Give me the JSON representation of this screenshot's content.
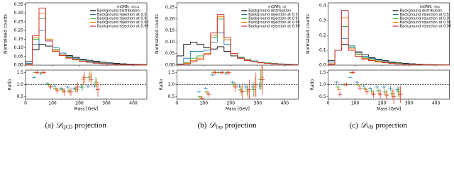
{
  "chart_data": [
    {
      "type": "histogram",
      "caption": {
        "label": "(a)",
        "symbol": "𝒟",
        "sub": "QCD",
        "rest": "projection"
      },
      "legend_title": {
        "prefix": "mDNN:",
        "symbol": "𝒟",
        "sub": "QCD"
      },
      "ylabel": "Normalised counts",
      "bins": [
        0,
        25,
        50,
        75,
        100,
        125,
        150,
        175,
        200,
        225,
        250,
        275,
        300,
        325,
        350,
        375,
        400,
        425,
        450
      ],
      "xlim": [
        0,
        450
      ],
      "xticks": [
        0,
        100,
        200,
        300,
        400
      ],
      "ylim": [
        0,
        0.36
      ],
      "yticks": [
        {
          "value": 0,
          "label": "0.00"
        },
        0.05,
        {
          "value": 0.1,
          "label": "0.10"
        },
        0.15,
        {
          "value": 0.2,
          "label": "0.20"
        },
        0.25,
        {
          "value": 0.3,
          "label": "0.30"
        },
        0.35
      ],
      "series": [
        {
          "name": "Background distribution",
          "color": "#000000",
          "values": [
            0.02,
            0.09,
            0.12,
            0.11,
            0.09,
            0.07,
            0.055,
            0.045,
            0.035,
            0.028,
            0.022,
            0.017,
            0.013,
            0.01,
            0.008,
            0.006,
            0.005,
            0.004
          ]
        },
        {
          "name": "Background rejection at 0.5",
          "color": "#1f77b4",
          "values": [
            0.01,
            0.12,
            0.2,
            0.14,
            0.1,
            0.07,
            0.05,
            0.04,
            0.03,
            0.022,
            0.016,
            0.012,
            0.009,
            0.007,
            0.005,
            0.004,
            0.003,
            0.002
          ]
        },
        {
          "name": "Background rejection at 0.9",
          "color": "#2ca02c",
          "values": [
            0.005,
            0.15,
            0.27,
            0.15,
            0.09,
            0.06,
            0.045,
            0.035,
            0.025,
            0.018,
            0.013,
            0.01,
            0.007,
            0.005,
            0.004,
            0.003,
            0.002,
            0.001
          ]
        },
        {
          "name": "Background rejection at 0.95",
          "color": "#ff7f0e",
          "values": [
            0.004,
            0.16,
            0.3,
            0.15,
            0.085,
            0.058,
            0.042,
            0.032,
            0.023,
            0.017,
            0.012,
            0.009,
            0.006,
            0.005,
            0.003,
            0.002,
            0.002,
            0.001
          ]
        },
        {
          "name": "Background rejection at 0.99",
          "color": "#d62728",
          "values": [
            0.003,
            0.17,
            0.33,
            0.14,
            0.08,
            0.055,
            0.04,
            0.03,
            0.022,
            0.016,
            0.011,
            0.008,
            0.006,
            0.004,
            0.003,
            0.002,
            0.001,
            0.001
          ]
        }
      ],
      "ratio": {
        "type": "errorbar",
        "ylabel": "Ratio",
        "xlabel": "Mass [GeV]",
        "ylim": [
          0.4,
          1.6
        ],
        "yticks": [
          0.5,
          {
            "value": 1,
            "label": "1.0"
          },
          1.5
        ],
        "hline": 1,
        "x": [
          37.5,
          62.5,
          87.5,
          112.5,
          137.5,
          162.5,
          187.5,
          212.5,
          237.5,
          262.5
        ],
        "series": [
          {
            "color": "#1f77b4",
            "values": [
              1.3,
              1.45,
              1.05,
              0.95,
              0.85,
              0.9,
              0.85,
              0.9,
              0.95,
              0.95
            ],
            "errors": [
              0.05,
              0.05,
              0.05,
              0.05,
              0.05,
              0.06,
              0.06,
              0.07,
              0.08,
              0.1
            ]
          },
          {
            "color": "#2ca02c",
            "values": [
              1.5,
              1.5,
              1.0,
              0.85,
              0.8,
              0.75,
              0.8,
              0.9,
              1.3,
              1.1
            ],
            "errors": [
              0.05,
              0.05,
              0.06,
              0.07,
              0.08,
              0.1,
              0.12,
              0.15,
              0.2,
              0.2
            ]
          },
          {
            "color": "#ff7f0e",
            "values": [
              1.5,
              1.5,
              0.95,
              0.8,
              0.75,
              0.7,
              0.8,
              1.2,
              1.35,
              1.0
            ],
            "errors": [
              0.06,
              0.06,
              0.07,
              0.08,
              0.1,
              0.12,
              0.15,
              0.2,
              0.25,
              0.25
            ]
          },
          {
            "color": "#d62728",
            "values": [
              1.5,
              1.5,
              0.9,
              0.75,
              0.7,
              0.7,
              0.9,
              1.3,
              1.2,
              0.8
            ],
            "errors": [
              0.08,
              0.08,
              0.1,
              0.12,
              0.15,
              0.18,
              0.2,
              0.25,
              0.3,
              0.3
            ]
          }
        ]
      }
    },
    {
      "type": "histogram",
      "caption": {
        "label": "(b)",
        "symbol": "𝒟",
        "sub": "Top",
        "rest": "projection"
      },
      "legend_title": {
        "prefix": "mDNN:",
        "symbol": "𝒟",
        "sub": "T"
      },
      "ylabel": "Normalised counts",
      "bins": [
        0,
        25,
        50,
        75,
        100,
        125,
        150,
        175,
        200,
        225,
        250,
        275,
        300,
        325,
        350,
        375,
        400,
        425,
        450
      ],
      "xlim": [
        0,
        450
      ],
      "xticks": [
        0,
        100,
        200,
        300,
        400
      ],
      "ylim": [
        0,
        0.27
      ],
      "yticks": [
        {
          "value": 0,
          "label": "0.00"
        },
        0.05,
        {
          "value": 0.1,
          "label": "0.10"
        },
        0.15,
        {
          "value": 0.2,
          "label": "0.20"
        },
        0.25
      ],
      "series": [
        {
          "name": "Background distribution",
          "color": "#000000",
          "values": [
            0.04,
            0.09,
            0.1,
            0.09,
            0.075,
            0.07,
            0.08,
            0.06,
            0.04,
            0.03,
            0.022,
            0.016,
            0.012,
            0.009,
            0.007,
            0.005,
            0.004,
            0.003
          ]
        },
        {
          "name": "Background rejection at 0.5",
          "color": "#1f77b4",
          "values": [
            0.005,
            0.03,
            0.06,
            0.06,
            0.065,
            0.1,
            0.14,
            0.09,
            0.05,
            0.035,
            0.025,
            0.018,
            0.013,
            0.01,
            0.007,
            0.005,
            0.004,
            0.003
          ]
        },
        {
          "name": "Background rejection at 0.9",
          "color": "#2ca02c",
          "values": [
            0.002,
            0.01,
            0.03,
            0.04,
            0.05,
            0.12,
            0.2,
            0.11,
            0.05,
            0.033,
            0.023,
            0.016,
            0.012,
            0.009,
            0.006,
            0.005,
            0.003,
            0.002
          ]
        },
        {
          "name": "Background rejection at 0.95",
          "color": "#ff7f0e",
          "values": [
            0.001,
            0.008,
            0.02,
            0.03,
            0.05,
            0.13,
            0.21,
            0.11,
            0.05,
            0.03,
            0.022,
            0.016,
            0.011,
            0.008,
            0.006,
            0.004,
            0.003,
            0.002
          ]
        },
        {
          "name": "Background rejection at 0.99",
          "color": "#d62728",
          "values": [
            0.001,
            0.005,
            0.015,
            0.025,
            0.045,
            0.14,
            0.22,
            0.12,
            0.05,
            0.03,
            0.02,
            0.015,
            0.01,
            0.007,
            0.005,
            0.004,
            0.003,
            0.002
          ]
        }
      ],
      "ratio": {
        "type": "errorbar",
        "ylabel": "Ratio",
        "xlabel": "Mass [GeV]",
        "ylim": [
          0.4,
          1.6
        ],
        "yticks": [
          0.5,
          {
            "value": 1,
            "label": "1.0"
          },
          1.5
        ],
        "hline": 1,
        "x": [
          87.5,
          112.5,
          137.5,
          162.5,
          187.5,
          212.5,
          237.5,
          262.5,
          287.5,
          312.5
        ],
        "series": [
          {
            "color": "#1f77b4",
            "values": [
              0.7,
              0.85,
              1.4,
              1.5,
              1.45,
              1.1,
              0.95,
              0.9,
              0.9,
              0.95
            ],
            "errors": [
              0.04,
              0.05,
              0.05,
              0.05,
              0.05,
              0.06,
              0.08,
              0.1,
              0.12,
              0.15
            ]
          },
          {
            "color": "#2ca02c",
            "values": [
              0.5,
              0.7,
              1.5,
              1.5,
              1.5,
              1.0,
              0.8,
              0.75,
              0.8,
              1.2
            ],
            "errors": [
              0.05,
              0.06,
              0.06,
              0.05,
              0.06,
              0.1,
              0.15,
              0.2,
              0.3,
              0.4
            ]
          },
          {
            "color": "#ff7f0e",
            "values": [
              0.45,
              0.65,
              1.5,
              1.5,
              1.5,
              0.95,
              0.75,
              0.7,
              0.9,
              1.3
            ],
            "errors": [
              0.06,
              0.07,
              0.07,
              0.06,
              0.07,
              0.12,
              0.2,
              0.3,
              0.4,
              0.5
            ]
          },
          {
            "color": "#d62728",
            "values": [
              0.45,
              0.6,
              1.5,
              1.5,
              1.5,
              0.9,
              0.7,
              0.8,
              1.0,
              1.2
            ],
            "errors": [
              0.08,
              0.1,
              0.1,
              0.08,
              0.1,
              0.2,
              0.3,
              0.4,
              0.5,
              0.6
            ]
          }
        ]
      }
    },
    {
      "type": "histogram",
      "caption": {
        "label": "(c)",
        "symbol": "𝒟",
        "sub": "VB",
        "rest": "projection"
      },
      "legend_title": {
        "prefix": "mDNN:",
        "symbol": "𝒟",
        "sub": "VB"
      },
      "ylabel": "Normalised counts",
      "bins": [
        0,
        25,
        50,
        75,
        100,
        125,
        150,
        175,
        200,
        225,
        250,
        275,
        300,
        325,
        350,
        375,
        400,
        425,
        450
      ],
      "xlim": [
        0,
        450
      ],
      "xticks": [
        0,
        100,
        200,
        300,
        400
      ],
      "ylim": [
        0,
        0.42
      ],
      "yticks": [
        {
          "value": 0,
          "label": "0.0"
        },
        0.1,
        0.2,
        0.3,
        0.4
      ],
      "series": [
        {
          "name": "Background distribution",
          "color": "#000000",
          "values": [
            0.03,
            0.1,
            0.14,
            0.12,
            0.09,
            0.07,
            0.05,
            0.04,
            0.03,
            0.022,
            0.016,
            0.012,
            0.009,
            0.007,
            0.005,
            0.004,
            0.003,
            0.002
          ]
        },
        {
          "name": "Background rejection at 0.5",
          "color": "#1f77b4",
          "values": [
            0.02,
            0.1,
            0.18,
            0.13,
            0.085,
            0.06,
            0.045,
            0.035,
            0.025,
            0.018,
            0.013,
            0.01,
            0.007,
            0.005,
            0.004,
            0.003,
            0.002,
            0.002
          ]
        },
        {
          "name": "Background rejection at 0.9",
          "color": "#2ca02c",
          "values": [
            0.01,
            0.1,
            0.26,
            0.12,
            0.075,
            0.05,
            0.038,
            0.028,
            0.02,
            0.015,
            0.011,
            0.008,
            0.006,
            0.004,
            0.003,
            0.002,
            0.002,
            0.001
          ]
        },
        {
          "name": "Background rejection at 0.95",
          "color": "#ff7f0e",
          "values": [
            0.01,
            0.1,
            0.32,
            0.11,
            0.07,
            0.045,
            0.033,
            0.025,
            0.018,
            0.013,
            0.009,
            0.007,
            0.005,
            0.004,
            0.003,
            0.002,
            0.001,
            0.001
          ]
        },
        {
          "name": "Background rejection at 0.99",
          "color": "#d62728",
          "values": [
            0.005,
            0.1,
            0.37,
            0.1,
            0.06,
            0.04,
            0.03,
            0.022,
            0.016,
            0.011,
            0.008,
            0.006,
            0.004,
            0.003,
            0.002,
            0.002,
            0.001,
            0.001
          ]
        }
      ],
      "ratio": {
        "type": "errorbar",
        "ylabel": "Ratio",
        "xlabel": "Mass [GeV]",
        "ylim": [
          0.4,
          1.6
        ],
        "yticks": [
          0.5,
          {
            "value": 1,
            "label": "1.0"
          },
          1.5
        ],
        "hline": 1,
        "x": [
          37.5,
          62.5,
          87.5,
          112.5,
          137.5,
          162.5,
          187.5,
          212.5,
          237.5,
          262.5
        ],
        "series": [
          {
            "color": "#1f77b4",
            "values": [
              1.1,
              1.0,
              1.3,
              1.1,
              0.95,
              0.85,
              0.9,
              0.9,
              0.85,
              0.8
            ],
            "errors": [
              0.05,
              0.04,
              0.04,
              0.05,
              0.05,
              0.06,
              0.07,
              0.08,
              0.1,
              0.12
            ]
          },
          {
            "color": "#2ca02c",
            "values": [
              0.9,
              1.0,
              1.5,
              1.0,
              0.85,
              0.75,
              0.75,
              0.7,
              0.65,
              0.7
            ],
            "errors": [
              0.06,
              0.05,
              0.05,
              0.06,
              0.07,
              0.08,
              0.1,
              0.12,
              0.15,
              0.2
            ]
          },
          {
            "color": "#ff7f0e",
            "values": [
              0.8,
              1.0,
              1.5,
              0.95,
              0.8,
              0.65,
              0.65,
              0.6,
              0.6,
              0.65
            ],
            "errors": [
              0.07,
              0.06,
              0.06,
              0.07,
              0.08,
              0.1,
              0.12,
              0.15,
              0.2,
              0.25
            ]
          },
          {
            "color": "#d62728",
            "values": [
              0.6,
              1.0,
              1.5,
              0.85,
              0.7,
              0.6,
              0.6,
              0.55,
              0.5,
              0.6
            ],
            "errors": [
              0.1,
              0.08,
              0.08,
              0.1,
              0.12,
              0.15,
              0.2,
              0.25,
              0.3,
              0.35
            ]
          }
        ]
      }
    }
  ]
}
